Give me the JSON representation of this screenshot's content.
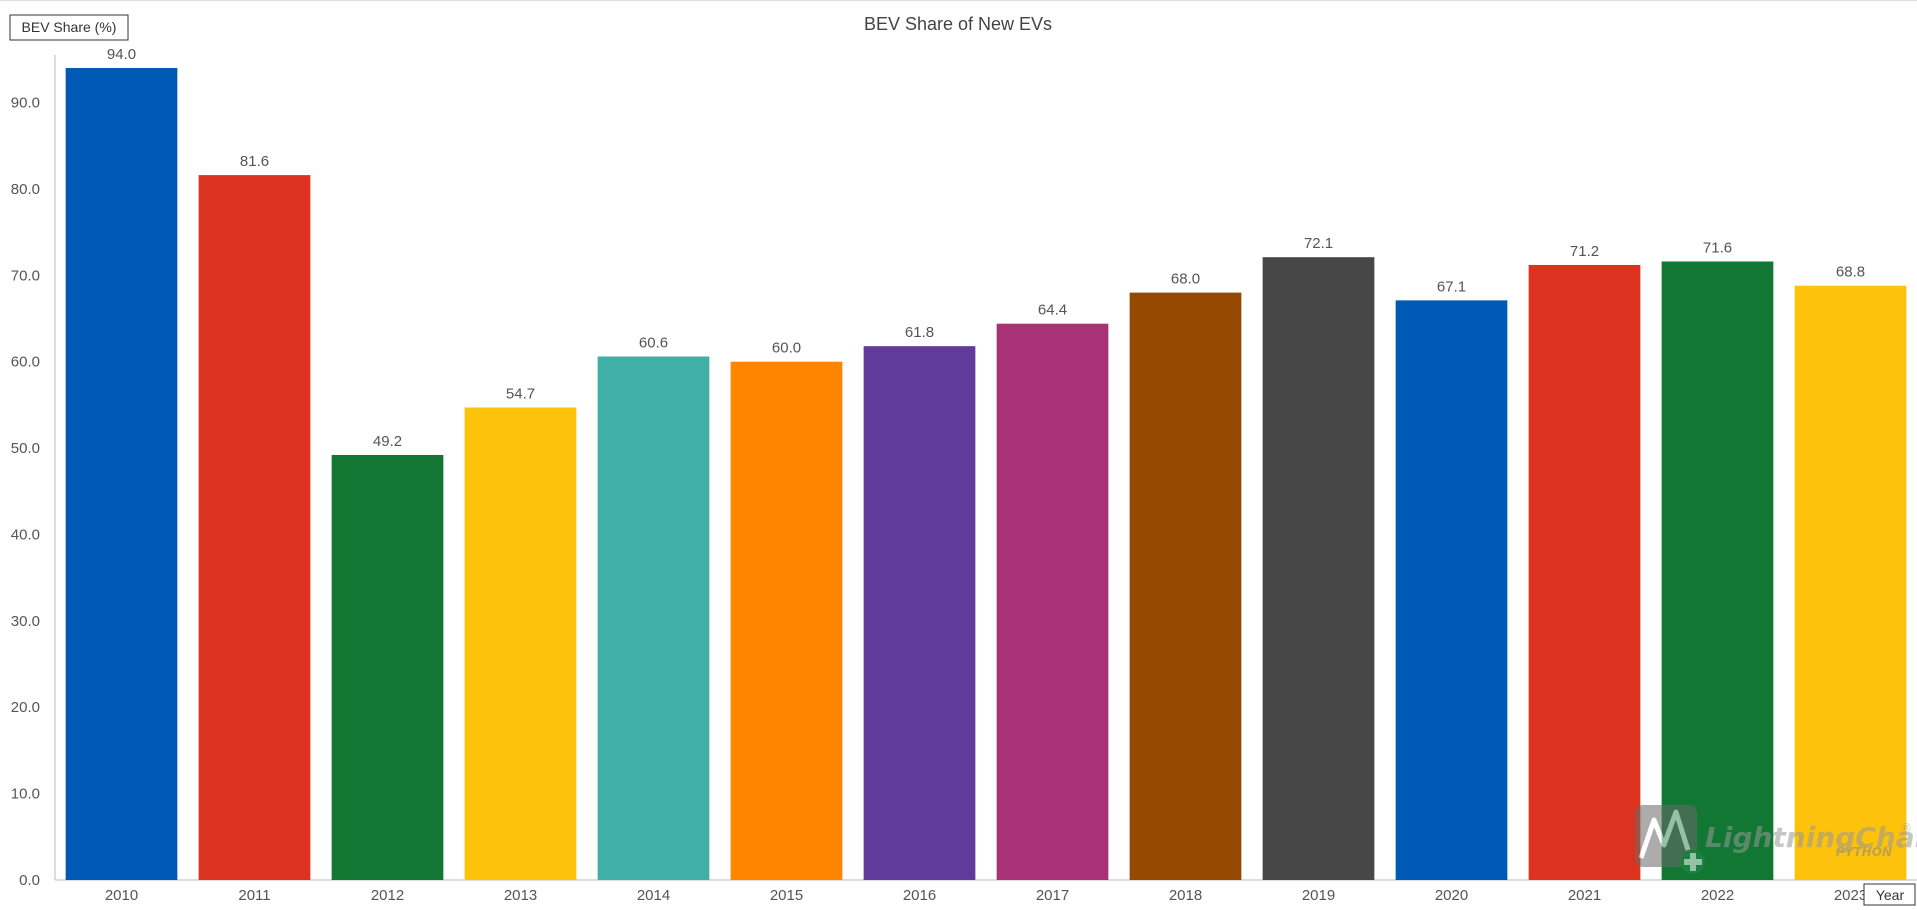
{
  "chart_data": {
    "type": "bar",
    "title": "BEV Share of New EVs",
    "xlabel": "Year",
    "ylabel": "BEV Share (%)",
    "categories": [
      "2010",
      "2011",
      "2012",
      "2013",
      "2014",
      "2015",
      "2016",
      "2017",
      "2018",
      "2019",
      "2020",
      "2021",
      "2022",
      "2023"
    ],
    "values": [
      94.0,
      81.6,
      49.2,
      54.7,
      60.6,
      60.0,
      61.8,
      64.4,
      68.0,
      72.1,
      67.1,
      71.2,
      71.6,
      68.8
    ],
    "value_labels": [
      "94.0",
      "81.6",
      "49.2",
      "54.7",
      "60.6",
      "60.0",
      "61.8",
      "64.4",
      "68.0",
      "72.1",
      "67.1",
      "71.2",
      "71.6",
      "68.8"
    ],
    "colors": [
      "#005ab5",
      "#dc3220",
      "#117733",
      "#fdc20b",
      "#40b0a6",
      "#ff8400",
      "#613a9b",
      "#a93277",
      "#964900",
      "#474747",
      "#005ab5",
      "#dc3220",
      "#117733",
      "#fdc20b"
    ],
    "ylim": [
      0,
      94
    ],
    "yticks": [
      "0.0",
      "10.0",
      "20.0",
      "30.0",
      "40.0",
      "50.0",
      "60.0",
      "70.0",
      "80.0",
      "90.0"
    ],
    "grid": false,
    "legend": "none"
  },
  "watermark": {
    "brand": "LightningChart",
    "sub": "PYTHON",
    "mark": "®"
  }
}
